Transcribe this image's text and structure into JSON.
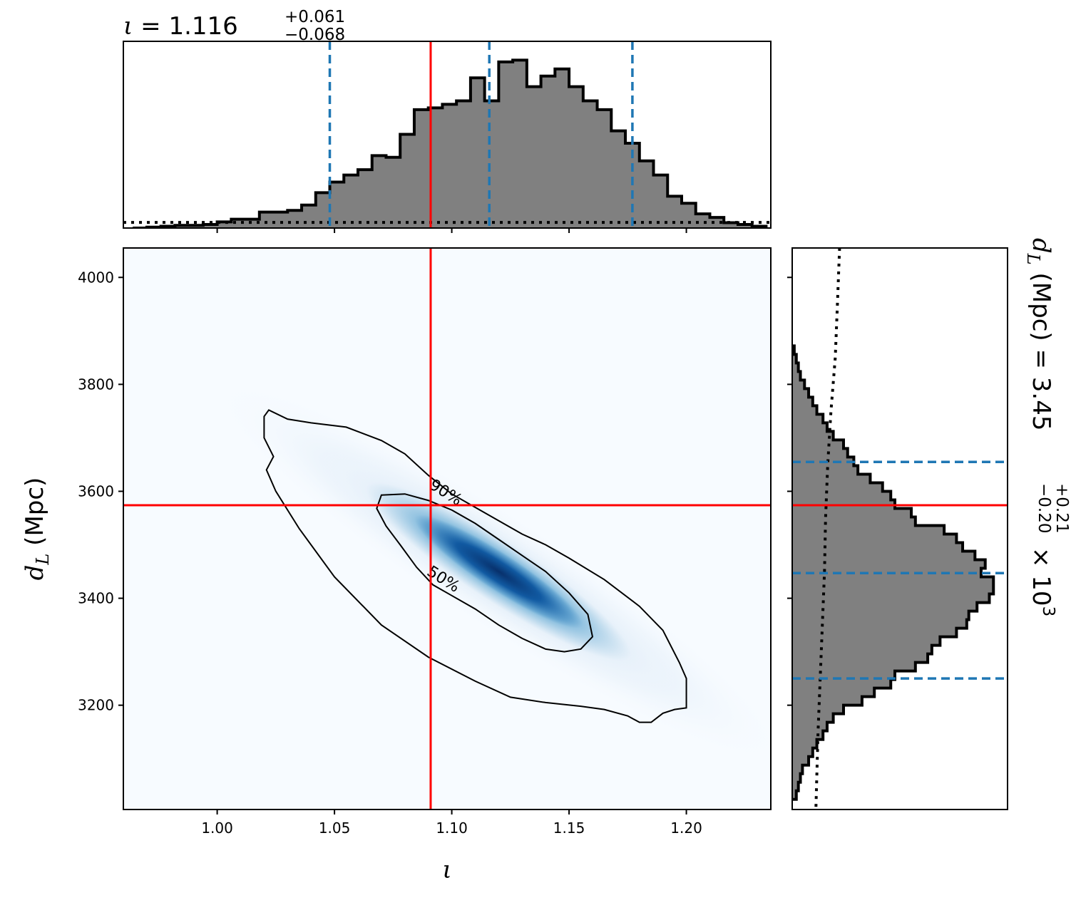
{
  "colors": {
    "truth": "#ff0000",
    "quantile": "#1f77b4",
    "hist_fill": "#808080",
    "hist_edge": "#000000",
    "prior": "#000000",
    "density_low": "#f7fbff",
    "density_high": "#08306b",
    "contour": "#000000"
  },
  "chart_data": [
    {
      "panel": "top-marginal",
      "type": "histogram",
      "title": {
        "symbol": "ι",
        "eq": " = 1.116",
        "plus": "+0.061",
        "minus": "−0.068"
      },
      "xlim": [
        0.96,
        1.236
      ],
      "truth": 1.091,
      "quantiles": [
        1.048,
        1.116,
        1.177
      ],
      "prior_level": 0.03,
      "bins": [
        0.967,
        0.973,
        0.979,
        0.985,
        0.991,
        0.997,
        1.003,
        1.009,
        1.015,
        1.021,
        1.027,
        1.033,
        1.039,
        1.045,
        1.051,
        1.057,
        1.063,
        1.069,
        1.075,
        1.081,
        1.087,
        1.093,
        1.099,
        1.105,
        1.111,
        1.117,
        1.123,
        1.129,
        1.135,
        1.141,
        1.147,
        1.153,
        1.159,
        1.165,
        1.171,
        1.177,
        1.183,
        1.189,
        1.195,
        1.201,
        1.207,
        1.213,
        1.219,
        1.225,
        1.231
      ],
      "values": [
        0.0,
        0.005,
        0.01,
        0.015,
        0.015,
        0.02,
        0.035,
        0.05,
        0.05,
        0.09,
        0.09,
        0.1,
        0.13,
        0.2,
        0.26,
        0.3,
        0.33,
        0.41,
        0.4,
        0.53,
        0.67,
        0.68,
        0.7,
        0.72,
        0.85,
        0.72,
        0.94,
        0.95,
        0.8,
        0.86,
        0.9,
        0.8,
        0.72,
        0.67,
        0.55,
        0.48,
        0.38,
        0.3,
        0.18,
        0.14,
        0.08,
        0.06,
        0.03,
        0.02,
        0.01
      ]
    },
    {
      "panel": "joint",
      "type": "heatmap",
      "xlabel": "ι",
      "ylabel": {
        "sym": "d",
        "sub": "L",
        "rest": " (Mpc)"
      },
      "xlim": [
        0.96,
        1.236
      ],
      "ylim": [
        3005,
        4055
      ],
      "xticks": [
        1.0,
        1.05,
        1.1,
        1.15,
        1.2
      ],
      "xtick_labels": [
        "1.00",
        "1.05",
        "1.10",
        "1.15",
        "1.20"
      ],
      "yticks": [
        3200,
        3400,
        3600,
        3800,
        4000
      ],
      "ytick_labels": [
        "3200",
        "3400",
        "3600",
        "3800",
        "4000"
      ],
      "truth": {
        "x": 1.091,
        "y": 3574
      },
      "density_peak": {
        "x": 1.12,
        "y": 3450
      },
      "contours": [
        {
          "label": "50%",
          "label_at": {
            "x": 1.089,
            "y": 3445
          },
          "points": [
            [
              1.07,
              3593
            ],
            [
              1.08,
              3595
            ],
            [
              1.09,
              3583
            ],
            [
              1.1,
              3565
            ],
            [
              1.11,
              3540
            ],
            [
              1.12,
              3510
            ],
            [
              1.13,
              3480
            ],
            [
              1.14,
              3450
            ],
            [
              1.15,
              3410
            ],
            [
              1.158,
              3370
            ],
            [
              1.16,
              3328
            ],
            [
              1.155,
              3305
            ],
            [
              1.148,
              3300
            ],
            [
              1.14,
              3305
            ],
            [
              1.13,
              3325
            ],
            [
              1.12,
              3350
            ],
            [
              1.11,
              3380
            ],
            [
              1.1,
              3405
            ],
            [
              1.092,
              3425
            ],
            [
              1.085,
              3458
            ],
            [
              1.078,
              3500
            ],
            [
              1.072,
              3535
            ],
            [
              1.068,
              3568
            ]
          ]
        },
        {
          "label": "90%",
          "label_at": {
            "x": 1.09,
            "y": 3607
          },
          "points": [
            [
              1.022,
              3752
            ],
            [
              1.03,
              3735
            ],
            [
              1.04,
              3728
            ],
            [
              1.055,
              3720
            ],
            [
              1.07,
              3695
            ],
            [
              1.08,
              3670
            ],
            [
              1.09,
              3630
            ],
            [
              1.1,
              3595
            ],
            [
              1.11,
              3570
            ],
            [
              1.12,
              3545
            ],
            [
              1.13,
              3520
            ],
            [
              1.14,
              3500
            ],
            [
              1.15,
              3475
            ],
            [
              1.165,
              3435
            ],
            [
              1.18,
              3385
            ],
            [
              1.19,
              3340
            ],
            [
              1.197,
              3280
            ],
            [
              1.2,
              3250
            ],
            [
              1.2,
              3195
            ],
            [
              1.195,
              3192
            ],
            [
              1.19,
              3185
            ],
            [
              1.185,
              3168
            ],
            [
              1.18,
              3168
            ],
            [
              1.175,
              3180
            ],
            [
              1.165,
              3192
            ],
            [
              1.155,
              3198
            ],
            [
              1.14,
              3205
            ],
            [
              1.125,
              3215
            ],
            [
              1.11,
              3245
            ],
            [
              1.09,
              3290
            ],
            [
              1.07,
              3350
            ],
            [
              1.05,
              3440
            ],
            [
              1.035,
              3530
            ],
            [
              1.025,
              3600
            ],
            [
              1.021,
              3640
            ],
            [
              1.024,
              3665
            ],
            [
              1.02,
              3700
            ],
            [
              1.02,
              3740
            ]
          ]
        }
      ]
    },
    {
      "panel": "right-marginal",
      "type": "histogram",
      "orientation": "horizontal",
      "label": {
        "sym": "d",
        "sub": "L",
        "mid": " (Mpc) = 3.45",
        "plus": "+0.21",
        "minus": "−0.20",
        "tail": " × 10",
        "exp": "3"
      },
      "ylim": [
        3005,
        4055
      ],
      "truth": 3574,
      "quantiles": [
        3250,
        3447,
        3655
      ],
      "prior_points": [
        [
          0.22,
          4055
        ],
        [
          0.21,
          3950
        ],
        [
          0.2,
          3850
        ],
        [
          0.18,
          3750
        ],
        [
          0.165,
          3650
        ],
        [
          0.155,
          3550
        ],
        [
          0.15,
          3450
        ],
        [
          0.14,
          3350
        ],
        [
          0.13,
          3250
        ],
        [
          0.12,
          3150
        ],
        [
          0.11,
          3005
        ]
      ],
      "bins": [
        3032,
        3048,
        3064,
        3080,
        3096,
        3112,
        3128,
        3144,
        3160,
        3176,
        3192,
        3208,
        3224,
        3240,
        3256,
        3272,
        3288,
        3304,
        3320,
        3336,
        3352,
        3368,
        3384,
        3400,
        3416,
        3432,
        3448,
        3464,
        3480,
        3496,
        3512,
        3528,
        3544,
        3560,
        3576,
        3592,
        3608,
        3624,
        3640,
        3656,
        3672,
        3688,
        3704,
        3720,
        3736,
        3752,
        3768,
        3784,
        3800,
        3816,
        3832,
        3848,
        3864
      ],
      "values": [
        0.02,
        0.03,
        0.04,
        0.05,
        0.08,
        0.1,
        0.12,
        0.15,
        0.17,
        0.2,
        0.25,
        0.34,
        0.4,
        0.48,
        0.5,
        0.6,
        0.66,
        0.68,
        0.72,
        0.8,
        0.85,
        0.86,
        0.9,
        0.96,
        0.98,
        0.98,
        0.92,
        0.94,
        0.89,
        0.83,
        0.8,
        0.74,
        0.6,
        0.58,
        0.5,
        0.48,
        0.44,
        0.38,
        0.32,
        0.3,
        0.27,
        0.25,
        0.2,
        0.17,
        0.15,
        0.12,
        0.1,
        0.08,
        0.06,
        0.04,
        0.03,
        0.02,
        0.01
      ]
    }
  ]
}
